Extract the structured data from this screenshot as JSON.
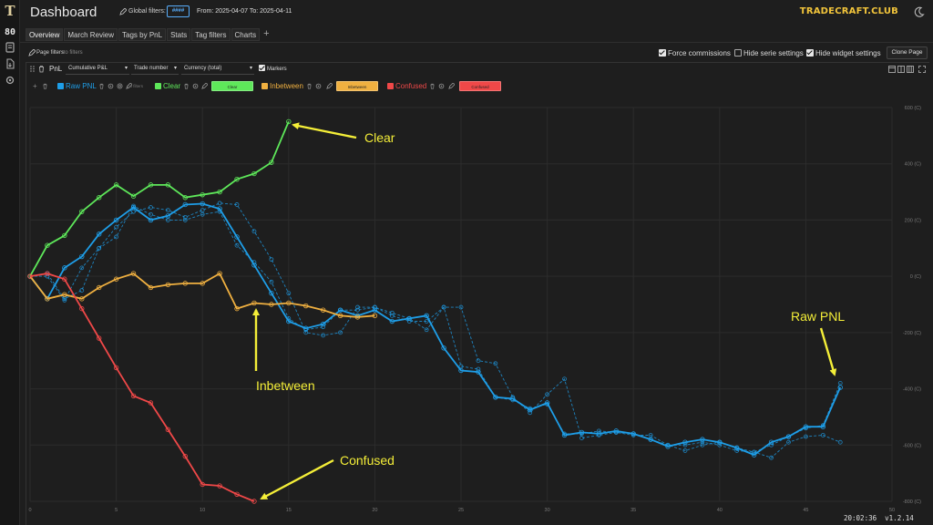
{
  "header": {
    "title": "Dashboard",
    "global_filters_label": "Global filters:",
    "global_filters_value": "####",
    "date_range": "From: 2025-04-07 To: 2025-04-11",
    "brand": "TRADECRAFT.CLUB"
  },
  "tabs": [
    {
      "label": "Overview",
      "active": true
    },
    {
      "label": "March Review"
    },
    {
      "label": "Tags by PnL"
    },
    {
      "label": "Stats"
    },
    {
      "label": "Tag filters"
    },
    {
      "label": "Charts"
    }
  ],
  "page_filters": {
    "label": "Page filters:",
    "value": "no filters"
  },
  "options": {
    "force_commissions": {
      "label": "Force commissions",
      "checked": true
    },
    "hide_serie_settings": {
      "label": "Hide serie settings",
      "checked": false
    },
    "hide_widget_settings": {
      "label": "Hide widget settings",
      "checked": true
    },
    "clone_page": "Clone Page"
  },
  "widget": {
    "name": "PnL",
    "metric": "Cumulative P&L",
    "x_axis": "Trade number",
    "unit": "Currency (total)",
    "markers_label": "Markers",
    "markers_checked": true
  },
  "series_settings": [
    {
      "name": "Raw PNL",
      "color": "#1e9ee8",
      "filter": "no filters"
    },
    {
      "name": "Clear",
      "color": "#5ee85a",
      "chip": "Clear"
    },
    {
      "name": "Inbetween",
      "color": "#f0b040",
      "chip": "Inbetween"
    },
    {
      "name": "Confused",
      "color": "#f04848",
      "chip": "Confused"
    }
  ],
  "chart_data": {
    "type": "line",
    "title": "",
    "xlabel": "",
    "ylabel": "",
    "xlim": [
      0,
      50
    ],
    "ylim": [
      -800,
      600
    ],
    "x_ticks": [
      0,
      5,
      10,
      15,
      20,
      25,
      30,
      35,
      40,
      45,
      50
    ],
    "y_ticks": [
      {
        "value": 600,
        "label": "600 (C)"
      },
      {
        "value": 400,
        "label": "400 (C)"
      },
      {
        "value": 200,
        "label": "200 (C)"
      },
      {
        "value": 0,
        "label": "0 (C)"
      },
      {
        "value": -200,
        "label": "-200 (C)"
      },
      {
        "value": -400,
        "label": "-400 (C)"
      },
      {
        "value": -600,
        "label": "-600 (C)"
      },
      {
        "value": -800,
        "label": "-800 (C)"
      }
    ],
    "grid": true,
    "series": [
      {
        "name": "Raw PNL",
        "color": "#1e9ee8",
        "x": [
          0,
          1,
          2,
          3,
          4,
          5,
          6,
          7,
          8,
          9,
          10,
          11,
          12,
          13,
          14,
          15,
          16,
          17,
          18,
          19,
          20,
          21,
          22,
          23,
          24,
          25,
          26,
          27,
          28,
          29,
          30,
          31,
          32,
          33,
          34,
          35,
          36,
          37,
          38,
          39,
          40,
          41,
          42,
          43,
          44,
          45,
          46,
          47
        ],
        "values": [
          0,
          -80,
          30,
          70,
          150,
          200,
          245,
          200,
          215,
          255,
          258,
          240,
          140,
          40,
          -60,
          -160,
          -185,
          -170,
          -120,
          -140,
          -120,
          -160,
          -150,
          -140,
          -255,
          -335,
          -340,
          -430,
          -435,
          -475,
          -450,
          -565,
          -555,
          -560,
          -550,
          -560,
          -580,
          -605,
          -590,
          -580,
          -590,
          -610,
          -635,
          -590,
          -570,
          -535,
          -535,
          -395
        ]
      },
      {
        "name": "",
        "color": "#1e9ee8",
        "dashed": true,
        "x": [
          0,
          1,
          2,
          3,
          4,
          5,
          6,
          7,
          8,
          9,
          10,
          11,
          12,
          13,
          14,
          15,
          16,
          17,
          18,
          19,
          20,
          21,
          22,
          23,
          24,
          25,
          26,
          27,
          28,
          29,
          30,
          31,
          32,
          33,
          34,
          35,
          36,
          37,
          38,
          39,
          40,
          41,
          42,
          43,
          44,
          45,
          46,
          47
        ],
        "values": [
          0,
          10,
          -80,
          -50,
          100,
          175,
          230,
          245,
          235,
          210,
          235,
          260,
          255,
          160,
          60,
          -60,
          -200,
          -210,
          -200,
          -110,
          -110,
          -130,
          -150,
          -190,
          -110,
          -110,
          -300,
          -310,
          -430,
          -485,
          -420,
          -365,
          -575,
          -565,
          -555,
          -565,
          -565,
          -600,
          -620,
          -600,
          -590,
          -610,
          -625,
          -645,
          -590,
          -570,
          -565,
          -590
        ]
      },
      {
        "name": "",
        "color": "#1e9ee8",
        "dashed": true,
        "x": [
          0,
          1,
          2,
          3,
          4,
          5,
          6,
          7,
          8,
          9,
          10,
          11,
          12,
          13,
          14,
          15,
          16,
          17,
          18,
          19,
          20,
          21,
          22,
          23,
          24,
          25,
          26,
          27,
          28,
          29,
          30,
          31,
          32,
          33,
          34,
          35,
          36,
          37,
          38,
          39,
          40,
          41,
          42,
          43,
          44,
          45,
          46,
          47
        ],
        "values": [
          0,
          0,
          -85,
          30,
          100,
          140,
          250,
          220,
          200,
          200,
          220,
          230,
          110,
          50,
          -20,
          -150,
          -190,
          -180,
          -120,
          -120,
          -110,
          -140,
          -160,
          -160,
          -110,
          -320,
          -330,
          -430,
          -440,
          -470,
          -455,
          -560,
          -560,
          -550,
          -555,
          -560,
          -580,
          -600,
          -600,
          -590,
          -600,
          -620,
          -625,
          -600,
          -570,
          -540,
          -530,
          -380
        ]
      },
      {
        "name": "Clear",
        "color": "#5ee85a",
        "x": [
          0,
          1,
          2,
          3,
          4,
          5,
          6,
          7,
          8,
          9,
          10,
          11,
          12,
          13,
          14,
          15
        ],
        "values": [
          0,
          110,
          145,
          230,
          280,
          325,
          285,
          325,
          325,
          280,
          290,
          300,
          345,
          365,
          405,
          550
        ]
      },
      {
        "name": "Inbetween",
        "color": "#f0b040",
        "x": [
          0,
          1,
          2,
          3,
          4,
          5,
          6,
          7,
          8,
          9,
          10,
          11,
          12,
          13,
          14,
          15,
          16,
          17,
          18,
          19,
          20
        ],
        "values": [
          0,
          -80,
          -65,
          -80,
          -40,
          -10,
          10,
          -40,
          -30,
          -25,
          -25,
          10,
          -115,
          -95,
          -100,
          -95,
          -105,
          -120,
          -140,
          -145,
          -140
        ]
      },
      {
        "name": "Confused",
        "color": "#f04848",
        "x": [
          0,
          1,
          2,
          3,
          4,
          5,
          6,
          7,
          8,
          9,
          10,
          11,
          12,
          13
        ],
        "values": [
          0,
          10,
          -10,
          -115,
          -220,
          -325,
          -425,
          -450,
          -545,
          -640,
          -740,
          -745,
          -775,
          -800
        ]
      }
    ],
    "annotations": [
      {
        "text": "Clear",
        "color": "#f4ee38"
      },
      {
        "text": "Inbetween",
        "color": "#f4ee38"
      },
      {
        "text": "Confused",
        "color": "#f4ee38"
      },
      {
        "text": "Raw PNL",
        "color": "#f4ee38"
      }
    ]
  },
  "status": {
    "clock": "20:02:36",
    "version": "v1.2.14"
  }
}
